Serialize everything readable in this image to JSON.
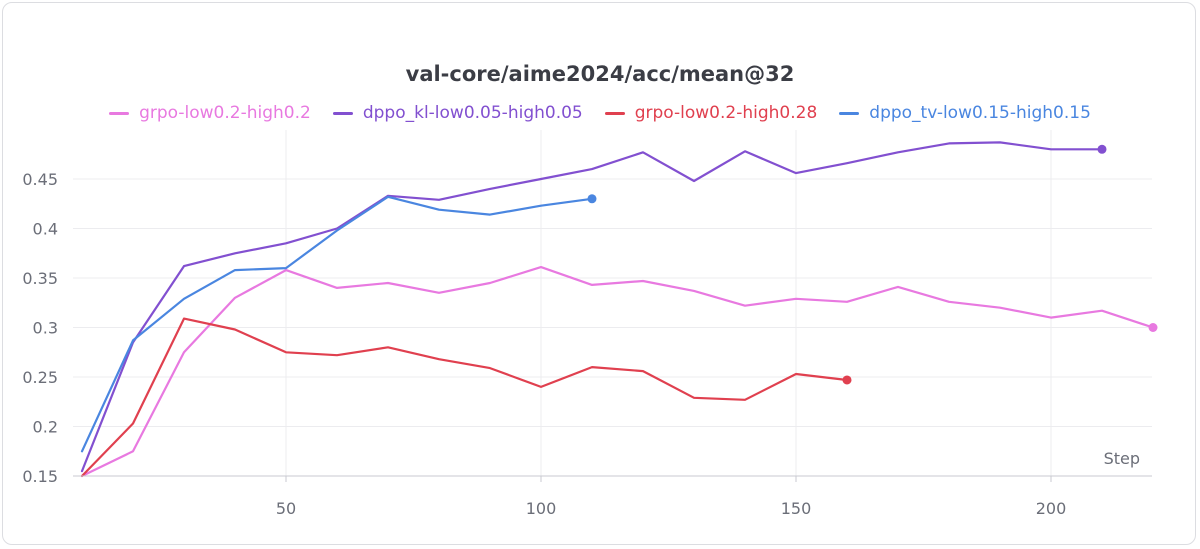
{
  "chart_data": {
    "type": "line",
    "title": "val-core/aime2024/acc/mean@32",
    "xlabel": "Step",
    "ylabel": "",
    "xlim": [
      10,
      230
    ],
    "ylim": [
      0.15,
      0.5
    ],
    "xticks": [
      50,
      100,
      150,
      200
    ],
    "yticks": [
      0.15,
      0.2,
      0.25,
      0.3,
      0.35,
      0.4,
      0.45
    ],
    "ytick_labels": [
      "0.15",
      "0.2",
      "0.25",
      "0.3",
      "0.35",
      "0.4",
      "0.45"
    ],
    "grid": true,
    "legend_position": "top",
    "series": [
      {
        "name": "grpo-low0.2-high0.2",
        "color": "#e879e0",
        "x": [
          10,
          20,
          30,
          40,
          50,
          60,
          70,
          80,
          90,
          100,
          110,
          120,
          130,
          140,
          150,
          160,
          170,
          180,
          190,
          200,
          210,
          220
        ],
        "y": [
          0.15,
          0.175,
          0.275,
          0.33,
          0.358,
          0.34,
          0.345,
          0.335,
          0.345,
          0.361,
          0.343,
          0.347,
          0.337,
          0.322,
          0.329,
          0.326,
          0.341,
          0.326,
          0.32,
          0.31,
          0.317,
          0.3
        ]
      },
      {
        "name": "dppo_kl-low0.05-high0.05",
        "color": "#8250d0",
        "x": [
          10,
          20,
          30,
          40,
          50,
          60,
          70,
          80,
          90,
          100,
          110,
          120,
          130,
          140,
          150,
          160,
          170,
          180,
          190,
          200,
          210
        ],
        "y": [
          0.155,
          0.285,
          0.362,
          0.375,
          0.385,
          0.4,
          0.433,
          0.429,
          0.44,
          0.45,
          0.46,
          0.477,
          0.448,
          0.478,
          0.456,
          0.466,
          0.477,
          0.486,
          0.487,
          0.48,
          0.48
        ]
      },
      {
        "name": "grpo-low0.2-high0.28",
        "color": "#e0404f",
        "x": [
          10,
          20,
          30,
          40,
          50,
          60,
          70,
          80,
          90,
          100,
          110,
          120,
          130,
          140,
          150,
          160
        ],
        "y": [
          0.15,
          0.203,
          0.309,
          0.298,
          0.275,
          0.272,
          0.28,
          0.268,
          0.259,
          0.24,
          0.26,
          0.256,
          0.229,
          0.227,
          0.253,
          0.247
        ]
      },
      {
        "name": "dppo_tv-low0.15-high0.15",
        "color": "#4a86e0",
        "x": [
          10,
          20,
          30,
          40,
          50,
          60,
          70,
          80,
          90,
          100,
          110
        ],
        "y": [
          0.175,
          0.287,
          0.329,
          0.358,
          0.36,
          0.398,
          0.432,
          0.419,
          0.414,
          0.423,
          0.43
        ]
      }
    ]
  }
}
